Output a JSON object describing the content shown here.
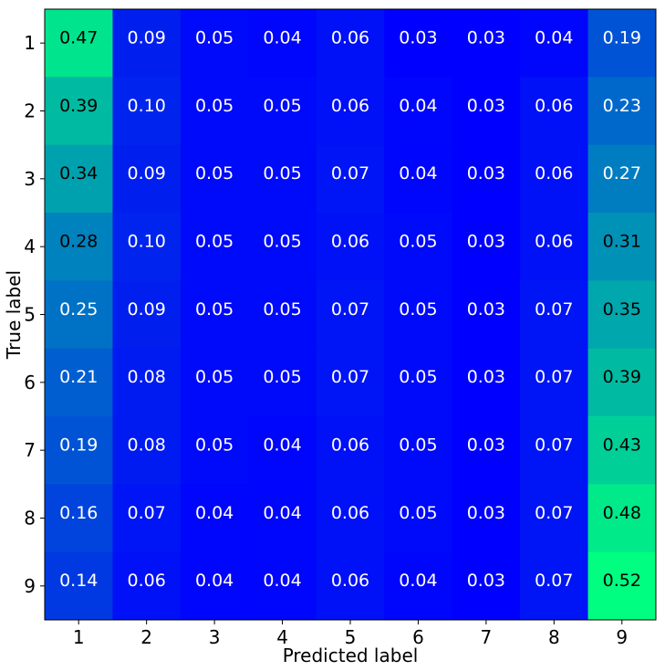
{
  "chart_data": {
    "type": "heatmap",
    "title": "",
    "xlabel": "Predicted label",
    "ylabel": "True label",
    "x_categories": [
      "1",
      "2",
      "3",
      "4",
      "5",
      "6",
      "7",
      "8",
      "9"
    ],
    "y_categories": [
      "1",
      "2",
      "3",
      "4",
      "5",
      "6",
      "7",
      "8",
      "9"
    ],
    "values": [
      [
        0.47,
        0.09,
        0.05,
        0.04,
        0.06,
        0.03,
        0.03,
        0.04,
        0.19
      ],
      [
        0.39,
        0.1,
        0.05,
        0.05,
        0.06,
        0.04,
        0.03,
        0.06,
        0.23
      ],
      [
        0.34,
        0.09,
        0.05,
        0.05,
        0.07,
        0.04,
        0.03,
        0.06,
        0.27
      ],
      [
        0.28,
        0.1,
        0.05,
        0.05,
        0.06,
        0.05,
        0.03,
        0.06,
        0.31
      ],
      [
        0.25,
        0.09,
        0.05,
        0.05,
        0.07,
        0.05,
        0.03,
        0.07,
        0.35
      ],
      [
        0.21,
        0.08,
        0.05,
        0.05,
        0.07,
        0.05,
        0.03,
        0.07,
        0.39
      ],
      [
        0.19,
        0.08,
        0.05,
        0.04,
        0.06,
        0.05,
        0.03,
        0.07,
        0.43
      ],
      [
        0.16,
        0.07,
        0.04,
        0.04,
        0.06,
        0.05,
        0.03,
        0.07,
        0.48
      ],
      [
        0.14,
        0.06,
        0.04,
        0.04,
        0.06,
        0.04,
        0.03,
        0.07,
        0.52
      ]
    ],
    "value_format": "0.00",
    "colormap": "winter",
    "color_low": "#0000ff",
    "color_high": "#00ff80",
    "value_range": [
      0.03,
      0.52
    ],
    "text_color_light": "#ffffff",
    "text_color_dark": "#000000",
    "grid": false
  }
}
